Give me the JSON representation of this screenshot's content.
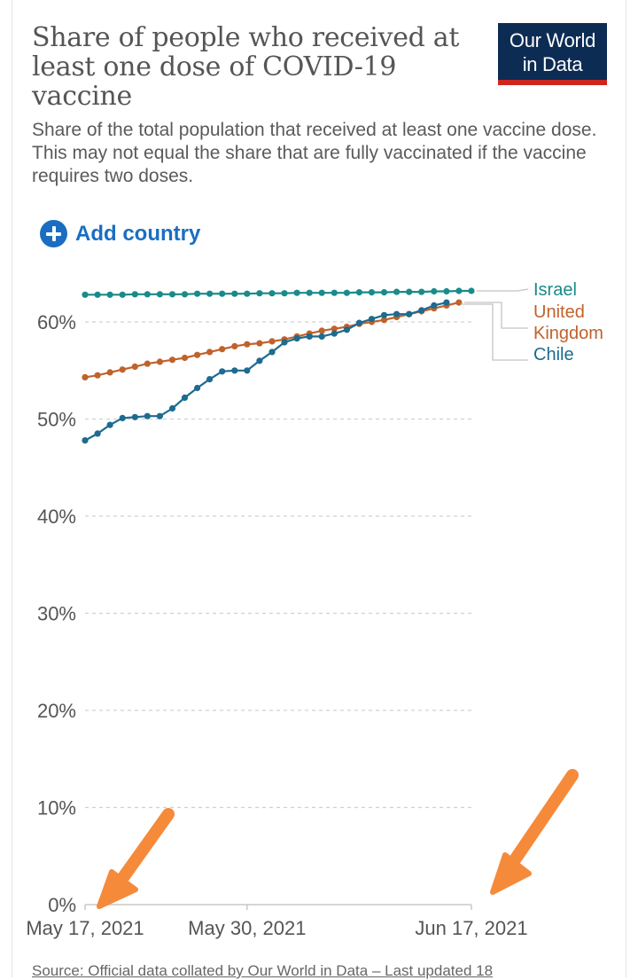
{
  "header": {
    "title": "Share of people who received at least one dose of COVID-19 vaccine",
    "subtitle": "Share of the total population that received at least one vaccine dose. This may not equal the share that are fully vaccinated if the vaccine requires two doses."
  },
  "logo": {
    "line1": "Our World",
    "line2": "in Data"
  },
  "controls": {
    "add_country": "Add country",
    "add_icon": "plus-circle-icon"
  },
  "footer": {
    "source": "Source: Official data collated by Our World in Data – Last updated 18"
  },
  "colors": {
    "Israel": "#1a8a8a",
    "United Kingdom": "#c0622b",
    "Chile": "#1d6b8f",
    "annotation_arrow": "#f58a3a"
  },
  "chart_data": {
    "type": "line",
    "title": "Share of people who received at least one dose of COVID-19 vaccine",
    "xlabel": "",
    "ylabel": "",
    "x_start": "2021-05-17",
    "x_end": "2021-06-17",
    "x_ticks": [
      {
        "date": "2021-05-17",
        "label": "May 17, 2021"
      },
      {
        "date": "2021-05-30",
        "label": "May 30, 2021"
      },
      {
        "date": "2021-06-17",
        "label": "Jun 17, 2021"
      }
    ],
    "ylim": [
      0,
      63
    ],
    "y_ticks": [
      {
        "value": 0,
        "label": "0%"
      },
      {
        "value": 10,
        "label": "10%"
      },
      {
        "value": 20,
        "label": "20%"
      },
      {
        "value": 30,
        "label": "30%"
      },
      {
        "value": 40,
        "label": "40%"
      },
      {
        "value": 50,
        "label": "50%"
      },
      {
        "value": 60,
        "label": "60%"
      }
    ],
    "grid": true,
    "legend_position": "right",
    "series": [
      {
        "name": "Israel",
        "legend_lines": [
          "Israel"
        ],
        "x": [
          "2021-05-17",
          "2021-05-18",
          "2021-05-19",
          "2021-05-20",
          "2021-05-21",
          "2021-05-22",
          "2021-05-23",
          "2021-05-24",
          "2021-05-25",
          "2021-05-26",
          "2021-05-27",
          "2021-05-28",
          "2021-05-29",
          "2021-05-30",
          "2021-05-31",
          "2021-06-01",
          "2021-06-02",
          "2021-06-03",
          "2021-06-04",
          "2021-06-05",
          "2021-06-06",
          "2021-06-07",
          "2021-06-08",
          "2021-06-09",
          "2021-06-10",
          "2021-06-11",
          "2021-06-12",
          "2021-06-13",
          "2021-06-14",
          "2021-06-15",
          "2021-06-16",
          "2021-06-17"
        ],
        "values": [
          62.8,
          62.8,
          62.8,
          62.8,
          62.85,
          62.85,
          62.85,
          62.85,
          62.85,
          62.9,
          62.9,
          62.9,
          62.9,
          62.9,
          62.95,
          62.95,
          62.95,
          63.0,
          63.0,
          63.0,
          63.0,
          63.0,
          63.05,
          63.05,
          63.05,
          63.1,
          63.1,
          63.1,
          63.15,
          63.15,
          63.2,
          63.2
        ]
      },
      {
        "name": "United Kingdom",
        "legend_lines": [
          "United",
          "Kingdom"
        ],
        "x": [
          "2021-05-17",
          "2021-05-18",
          "2021-05-19",
          "2021-05-20",
          "2021-05-21",
          "2021-05-22",
          "2021-05-23",
          "2021-05-24",
          "2021-05-25",
          "2021-05-26",
          "2021-05-27",
          "2021-05-28",
          "2021-05-29",
          "2021-05-30",
          "2021-05-31",
          "2021-06-01",
          "2021-06-02",
          "2021-06-03",
          "2021-06-04",
          "2021-06-05",
          "2021-06-06",
          "2021-06-07",
          "2021-06-08",
          "2021-06-09",
          "2021-06-10",
          "2021-06-11",
          "2021-06-12",
          "2021-06-13",
          "2021-06-14",
          "2021-06-15",
          "2021-06-16"
        ],
        "values": [
          54.3,
          54.5,
          54.8,
          55.1,
          55.4,
          55.7,
          55.9,
          56.1,
          56.3,
          56.6,
          56.9,
          57.2,
          57.5,
          57.7,
          57.8,
          58.0,
          58.2,
          58.5,
          58.8,
          59.1,
          59.3,
          59.5,
          59.8,
          60.0,
          60.2,
          60.5,
          60.8,
          61.1,
          61.4,
          61.7,
          62.0
        ]
      },
      {
        "name": "Chile",
        "legend_lines": [
          "Chile"
        ],
        "x": [
          "2021-05-17",
          "2021-05-18",
          "2021-05-19",
          "2021-05-20",
          "2021-05-21",
          "2021-05-22",
          "2021-05-23",
          "2021-05-24",
          "2021-05-25",
          "2021-05-26",
          "2021-05-27",
          "2021-05-28",
          "2021-05-29",
          "2021-05-30",
          "2021-05-31",
          "2021-06-01",
          "2021-06-02",
          "2021-06-03",
          "2021-06-04",
          "2021-06-05",
          "2021-06-06",
          "2021-06-07",
          "2021-06-08",
          "2021-06-09",
          "2021-06-10",
          "2021-06-11",
          "2021-06-12",
          "2021-06-13",
          "2021-06-14",
          "2021-06-15"
        ],
        "values": [
          47.8,
          48.5,
          49.4,
          50.1,
          50.2,
          50.3,
          50.3,
          51.1,
          52.2,
          53.2,
          54.1,
          54.9,
          55.0,
          55.0,
          56.0,
          56.9,
          57.9,
          58.3,
          58.5,
          58.5,
          58.8,
          59.2,
          59.9,
          60.3,
          60.7,
          60.8,
          60.8,
          61.2,
          61.7,
          62.0
        ]
      }
    ]
  }
}
